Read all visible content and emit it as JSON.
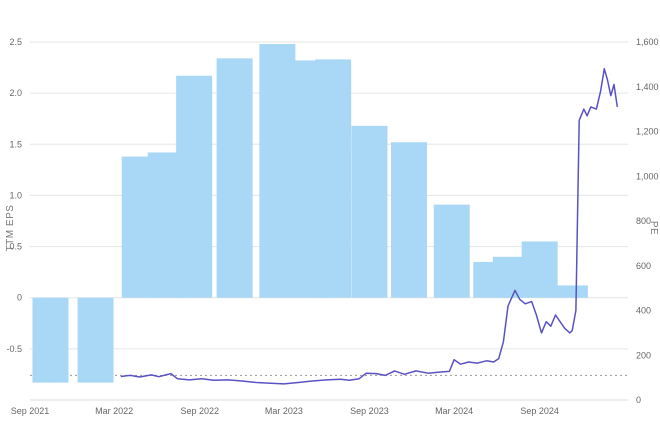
{
  "chart_data": {
    "type": "bar+line",
    "ylabel_left": "TTM EPS",
    "ylabel_right": "PE",
    "x_ticks": [
      "Sep 2021",
      "Mar 2022",
      "Sep 2022",
      "Mar 2023",
      "Sep 2023",
      "Mar 2024",
      "Sep 2024"
    ],
    "y_left_ticks": [
      "2.5",
      "2.0",
      "1.5",
      "1.0",
      "0.5",
      "0",
      "-0.5"
    ],
    "y_left_tick_values": [
      2.5,
      2.0,
      1.5,
      1.0,
      0.5,
      0,
      -0.5
    ],
    "y_right_ticks": [
      "1,600",
      "1,400",
      "1,200",
      "1,000",
      "800",
      "600",
      "400",
      "200",
      "0"
    ],
    "y_right_tick_values": [
      1600,
      1400,
      1200,
      1000,
      800,
      600,
      400,
      200,
      0
    ],
    "ylim_left": [
      -1.0,
      2.5
    ],
    "ylim_right": [
      0,
      1600
    ],
    "reference_line_pe": 110,
    "colors": {
      "bars": "#a8d8f5",
      "line": "#5a52c4",
      "grid": "#e6e6e6",
      "ref_line": "#999999",
      "tick": "#666666"
    },
    "eps_bars": [
      {
        "date": "2021-10-15",
        "value": -0.83
      },
      {
        "date": "2022-01-20",
        "value": -0.83
      },
      {
        "date": "2022-04-25",
        "value": 1.38
      },
      {
        "date": "2022-06-20",
        "value": 1.42
      },
      {
        "date": "2022-08-20",
        "value": 2.17
      },
      {
        "date": "2022-11-15",
        "value": 2.34
      },
      {
        "date": "2023-02-15",
        "value": 2.48
      },
      {
        "date": "2023-05-01",
        "value": 2.32
      },
      {
        "date": "2023-06-15",
        "value": 2.33
      },
      {
        "date": "2023-09-01",
        "value": 1.68
      },
      {
        "date": "2023-11-25",
        "value": 1.52
      },
      {
        "date": "2024-02-25",
        "value": 0.91
      },
      {
        "date": "2024-05-20",
        "value": 0.35
      },
      {
        "date": "2024-07-01",
        "value": 0.4
      },
      {
        "date": "2024-09-01",
        "value": 0.55
      },
      {
        "date": "2024-11-05",
        "value": 0.12
      }
    ],
    "pe_series": [
      [
        "2022-03-15",
        105
      ],
      [
        "2022-04-05",
        110
      ],
      [
        "2022-04-25",
        103
      ],
      [
        "2022-05-20",
        112
      ],
      [
        "2022-06-05",
        104
      ],
      [
        "2022-07-01",
        118
      ],
      [
        "2022-07-15",
        95
      ],
      [
        "2022-08-10",
        90
      ],
      [
        "2022-09-05",
        95
      ],
      [
        "2022-10-01",
        88
      ],
      [
        "2022-11-01",
        90
      ],
      [
        "2022-12-01",
        85
      ],
      [
        "2023-01-01",
        78
      ],
      [
        "2023-02-01",
        75
      ],
      [
        "2023-03-01",
        72
      ],
      [
        "2023-04-01",
        78
      ],
      [
        "2023-05-01",
        85
      ],
      [
        "2023-06-01",
        90
      ],
      [
        "2023-07-01",
        93
      ],
      [
        "2023-07-20",
        88
      ],
      [
        "2023-08-10",
        95
      ],
      [
        "2023-08-25",
        120
      ],
      [
        "2023-09-15",
        118
      ],
      [
        "2023-10-05",
        110
      ],
      [
        "2023-10-25",
        130
      ],
      [
        "2023-11-15",
        115
      ],
      [
        "2023-12-10",
        130
      ],
      [
        "2024-01-05",
        120
      ],
      [
        "2024-02-01",
        125
      ],
      [
        "2024-02-20",
        128
      ],
      [
        "2024-03-01",
        180
      ],
      [
        "2024-03-15",
        160
      ],
      [
        "2024-04-01",
        170
      ],
      [
        "2024-04-20",
        165
      ],
      [
        "2024-05-10",
        175
      ],
      [
        "2024-05-25",
        170
      ],
      [
        "2024-06-05",
        185
      ],
      [
        "2024-06-15",
        260
      ],
      [
        "2024-06-25",
        420
      ],
      [
        "2024-07-10",
        490
      ],
      [
        "2024-07-20",
        450
      ],
      [
        "2024-08-01",
        430
      ],
      [
        "2024-08-15",
        440
      ],
      [
        "2024-08-25",
        380
      ],
      [
        "2024-09-05",
        300
      ],
      [
        "2024-09-15",
        350
      ],
      [
        "2024-09-25",
        330
      ],
      [
        "2024-10-05",
        380
      ],
      [
        "2024-10-15",
        350
      ],
      [
        "2024-10-25",
        320
      ],
      [
        "2024-11-05",
        300
      ],
      [
        "2024-11-10",
        310
      ],
      [
        "2024-11-18",
        400
      ],
      [
        "2024-11-25",
        1250
      ],
      [
        "2024-12-05",
        1300
      ],
      [
        "2024-12-12",
        1270
      ],
      [
        "2024-12-20",
        1310
      ],
      [
        "2025-01-01",
        1300
      ],
      [
        "2025-01-10",
        1380
      ],
      [
        "2025-01-18",
        1480
      ],
      [
        "2025-01-25",
        1430
      ],
      [
        "2025-02-01",
        1360
      ],
      [
        "2025-02-08",
        1410
      ],
      [
        "2025-02-15",
        1310
      ]
    ]
  }
}
